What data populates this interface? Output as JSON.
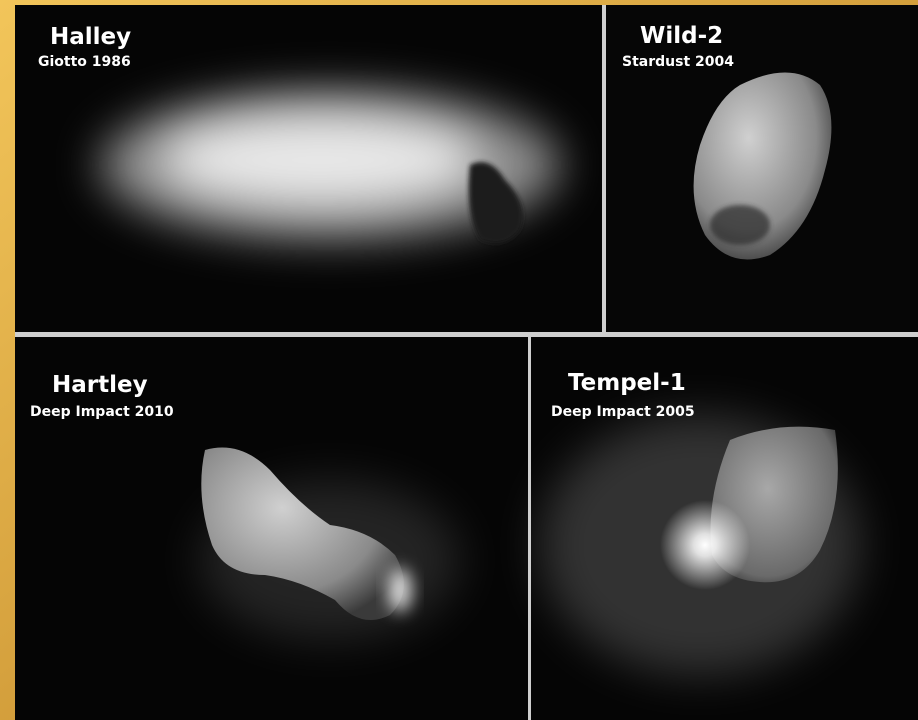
{
  "panels": [
    {
      "title": "Halley",
      "subtitle": "Giotto 1986"
    },
    {
      "title": "Wild-2",
      "subtitle": "Stardust 2004"
    },
    {
      "title": "Hartley",
      "subtitle": "Deep Impact 2010"
    },
    {
      "title": "Tempel-1",
      "subtitle": "Deep Impact 2005"
    }
  ]
}
